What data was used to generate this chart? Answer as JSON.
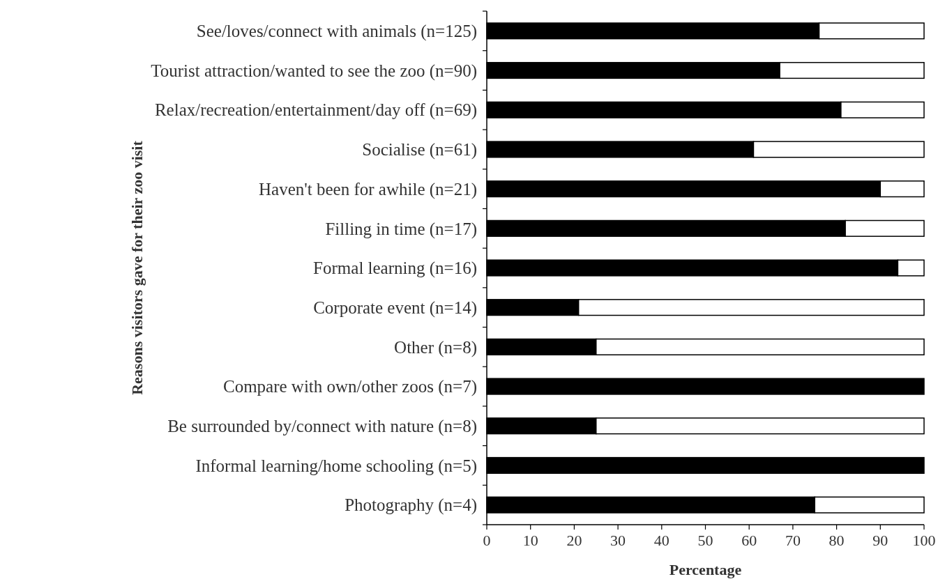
{
  "chart_data": {
    "type": "bar",
    "orientation": "horizontal",
    "stacked": true,
    "xlabel": "Percentage",
    "ylabel": "Reasons visitors gave for their zoo visit",
    "categories": [
      "See/loves/connect with animals (n=125)",
      "Tourist attraction/wanted to see the zoo (n=90)",
      "Relax/recreation/entertainment/day off (n=69)",
      "Socialise (n=61)",
      "Haven't been for awhile (n=21)",
      "Filling in time (n=17)",
      "Formal learning (n=16)",
      "Corporate event (n=14)",
      "Other (n=8)",
      "Compare with own/other zoos (n=7)",
      "Be surrounded by/connect with nature (n=8)",
      "Informal learning/home schooling (n=5)",
      "Photography (n=4)"
    ],
    "series": [
      {
        "color": "#000000",
        "values": [
          76,
          67,
          81,
          61,
          90,
          82,
          94,
          21,
          25,
          100,
          25,
          100,
          75
        ]
      },
      {
        "color": "#ffffff",
        "values": [
          24,
          33,
          19,
          39,
          10,
          18,
          6,
          79,
          75,
          0,
          75,
          0,
          25
        ]
      }
    ],
    "xlim": [
      0,
      100
    ],
    "xticks": [
      0,
      10,
      20,
      30,
      40,
      50,
      60,
      70,
      80,
      90,
      100
    ]
  }
}
